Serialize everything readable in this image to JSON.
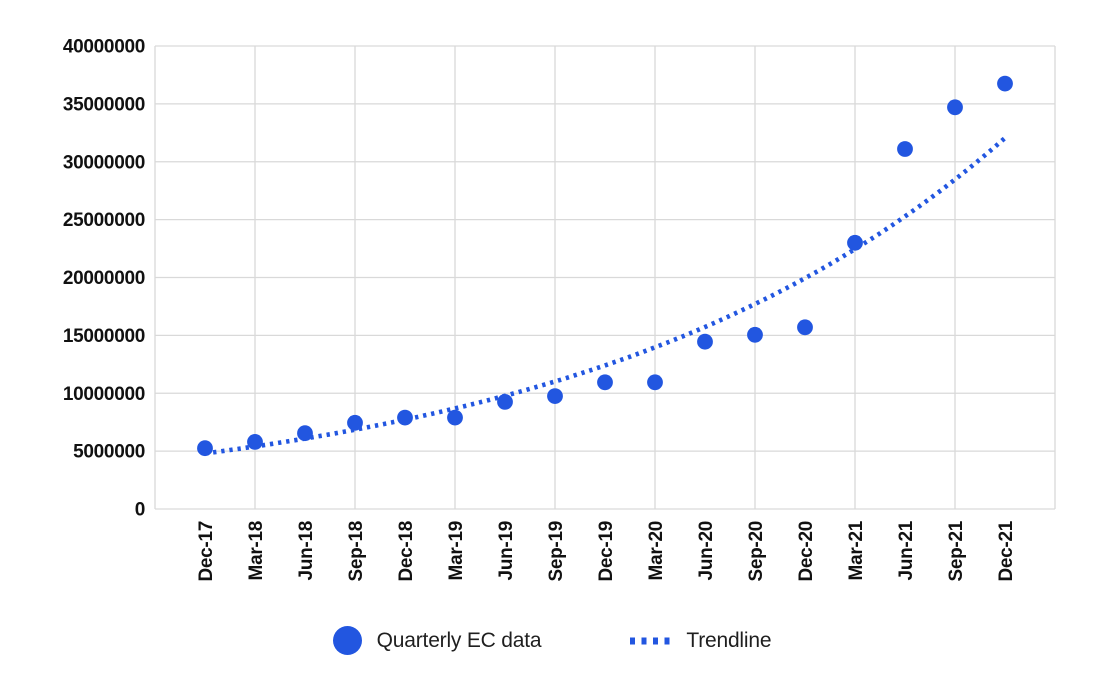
{
  "colors": {
    "accent": "#2256E0",
    "grid": "#D9D9D9",
    "axis_text": "#111111",
    "legend_text": "#1F1F1F",
    "background": "#FFFFFF"
  },
  "chart_data": {
    "type": "scatter",
    "title": "",
    "categories": [
      "Dec-17",
      "Mar-18",
      "Jun-18",
      "Sep-18",
      "Dec-18",
      "Mar-19",
      "Jun-19",
      "Sep-19",
      "Dec-19",
      "Mar-20",
      "Jun-20",
      "Sep-20",
      "Dec-20",
      "Mar-21",
      "Jun-21",
      "Sep-21",
      "Dec-21"
    ],
    "series": [
      {
        "name": "Quarterly EC data",
        "type": "scatter",
        "marker": "circle",
        "values": [
          5250000,
          5800000,
          6550000,
          7450000,
          7900000,
          7900000,
          9250000,
          9750000,
          10950000,
          10950000,
          14450000,
          15050000,
          15700000,
          23000000,
          31100000,
          34700000,
          36750000
        ]
      },
      {
        "name": "Trendline",
        "type": "exponential-trendline",
        "style": "dotted",
        "start_value": 4800000,
        "end_value": 32050000
      }
    ],
    "y_axis": {
      "min": 0,
      "max": 40000000,
      "tick_step": 5000000,
      "tick_labels": [
        "0",
        "5000000",
        "10000000",
        "15000000",
        "20000000",
        "25000000",
        "30000000",
        "35000000",
        "40000000"
      ]
    },
    "x_axis": {
      "label_rotation": -90
    },
    "grid": true,
    "legend_position": "bottom"
  }
}
